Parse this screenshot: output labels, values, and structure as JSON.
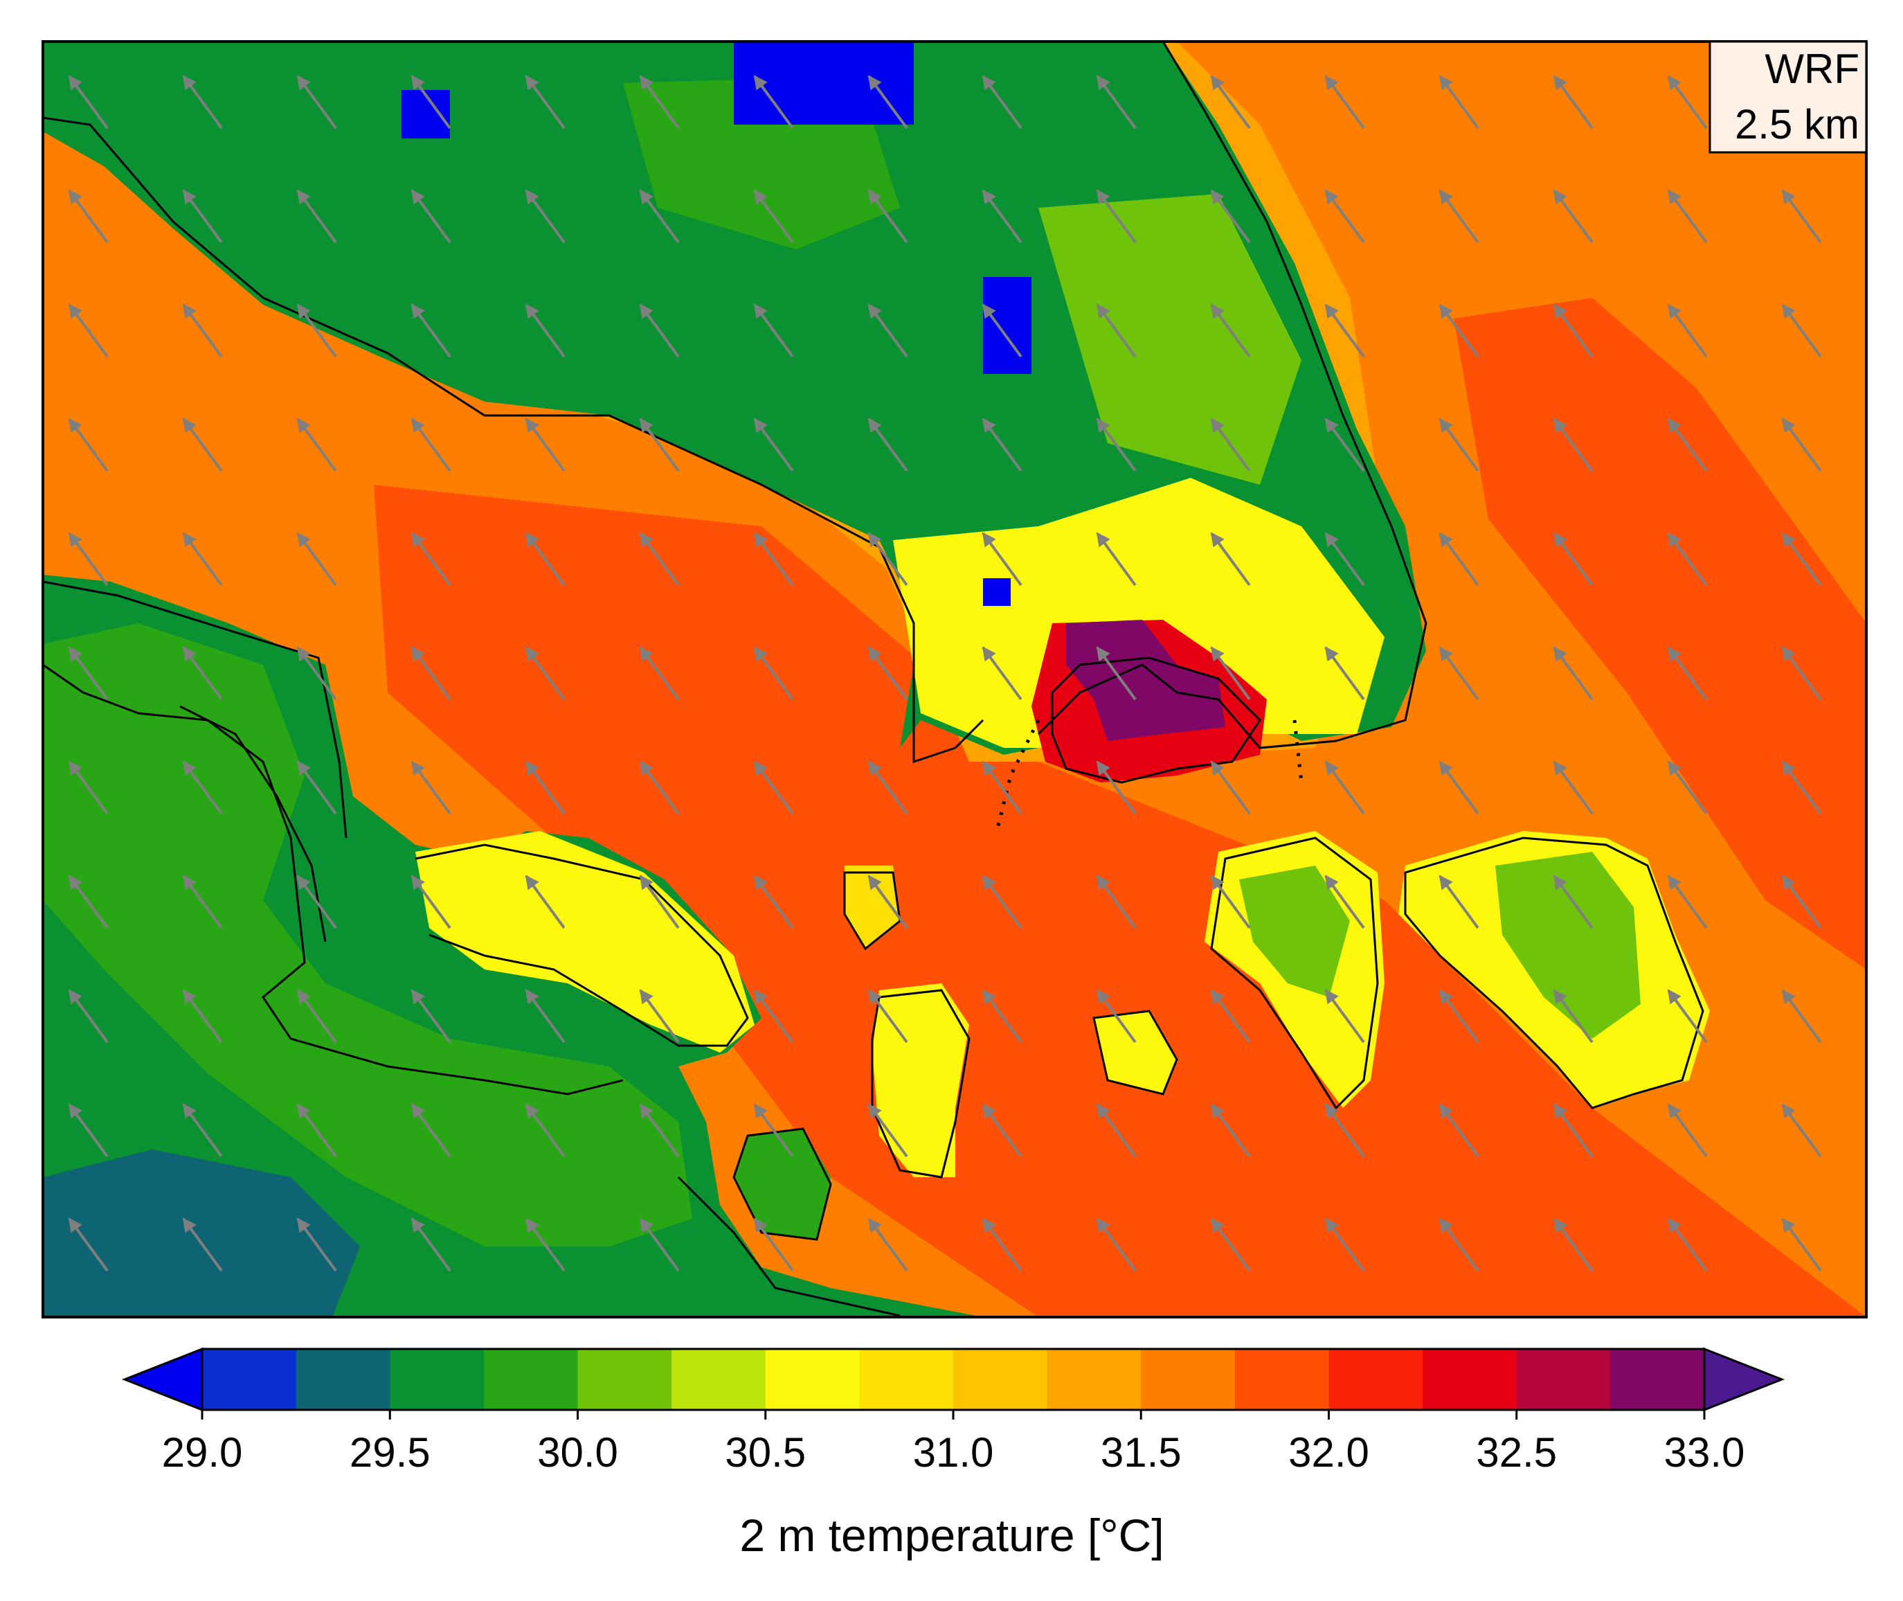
{
  "map": {
    "model_label_line1": "WRF",
    "model_label_line2": "2.5 km",
    "label_box_color": "#fdf0e6",
    "wind_arrow_color": "#7f7f7f",
    "coastline_color": "#000000"
  },
  "colorbar": {
    "label": "2 m temperature [°C]",
    "ticks": [
      "29.0",
      "29.5",
      "30.0",
      "30.5",
      "31.0",
      "31.5",
      "32.0",
      "32.5",
      "33.0"
    ],
    "tick_values": [
      29.0,
      29.5,
      30.0,
      30.5,
      31.0,
      31.5,
      32.0,
      32.5,
      33.0
    ],
    "range": [
      29.0,
      33.0
    ],
    "step": 0.25,
    "extend": "both",
    "under_color": "#0000f0",
    "over_color": "#4b1a8f",
    "colors": [
      "#0a2fd0",
      "#0e6473",
      "#0a9132",
      "#28a616",
      "#6fc30b",
      "#bde509",
      "#fef90c",
      "#fee002",
      "#fec400",
      "#fea300",
      "#fe7f00",
      "#ff5005",
      "#fb2108",
      "#e60012",
      "#b4053c",
      "#7f0866"
    ]
  }
}
